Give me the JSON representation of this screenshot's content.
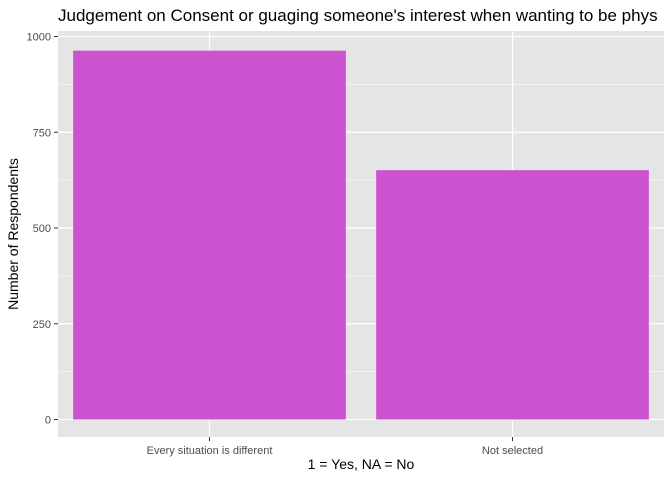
{
  "chart_data": {
    "type": "bar",
    "title": "Judgement on Consent or guaging someone's interest when wanting to be phys",
    "xlabel": "1 = Yes, NA = No",
    "ylabel": "Number of Respondents",
    "categories": [
      "Every situation is different",
      "Not selected"
    ],
    "values": [
      963,
      651
    ],
    "ylim": [
      0,
      1000
    ],
    "yticks": [
      0,
      250,
      500,
      750,
      1000
    ],
    "ytick_labels": [
      "0",
      "250",
      "500",
      "750",
      "1000"
    ],
    "grid": true,
    "legend": "none",
    "colors": {
      "bar": "#cc52cf",
      "panel_background": "#e5e5e5",
      "gridline": "#ffffff"
    }
  }
}
